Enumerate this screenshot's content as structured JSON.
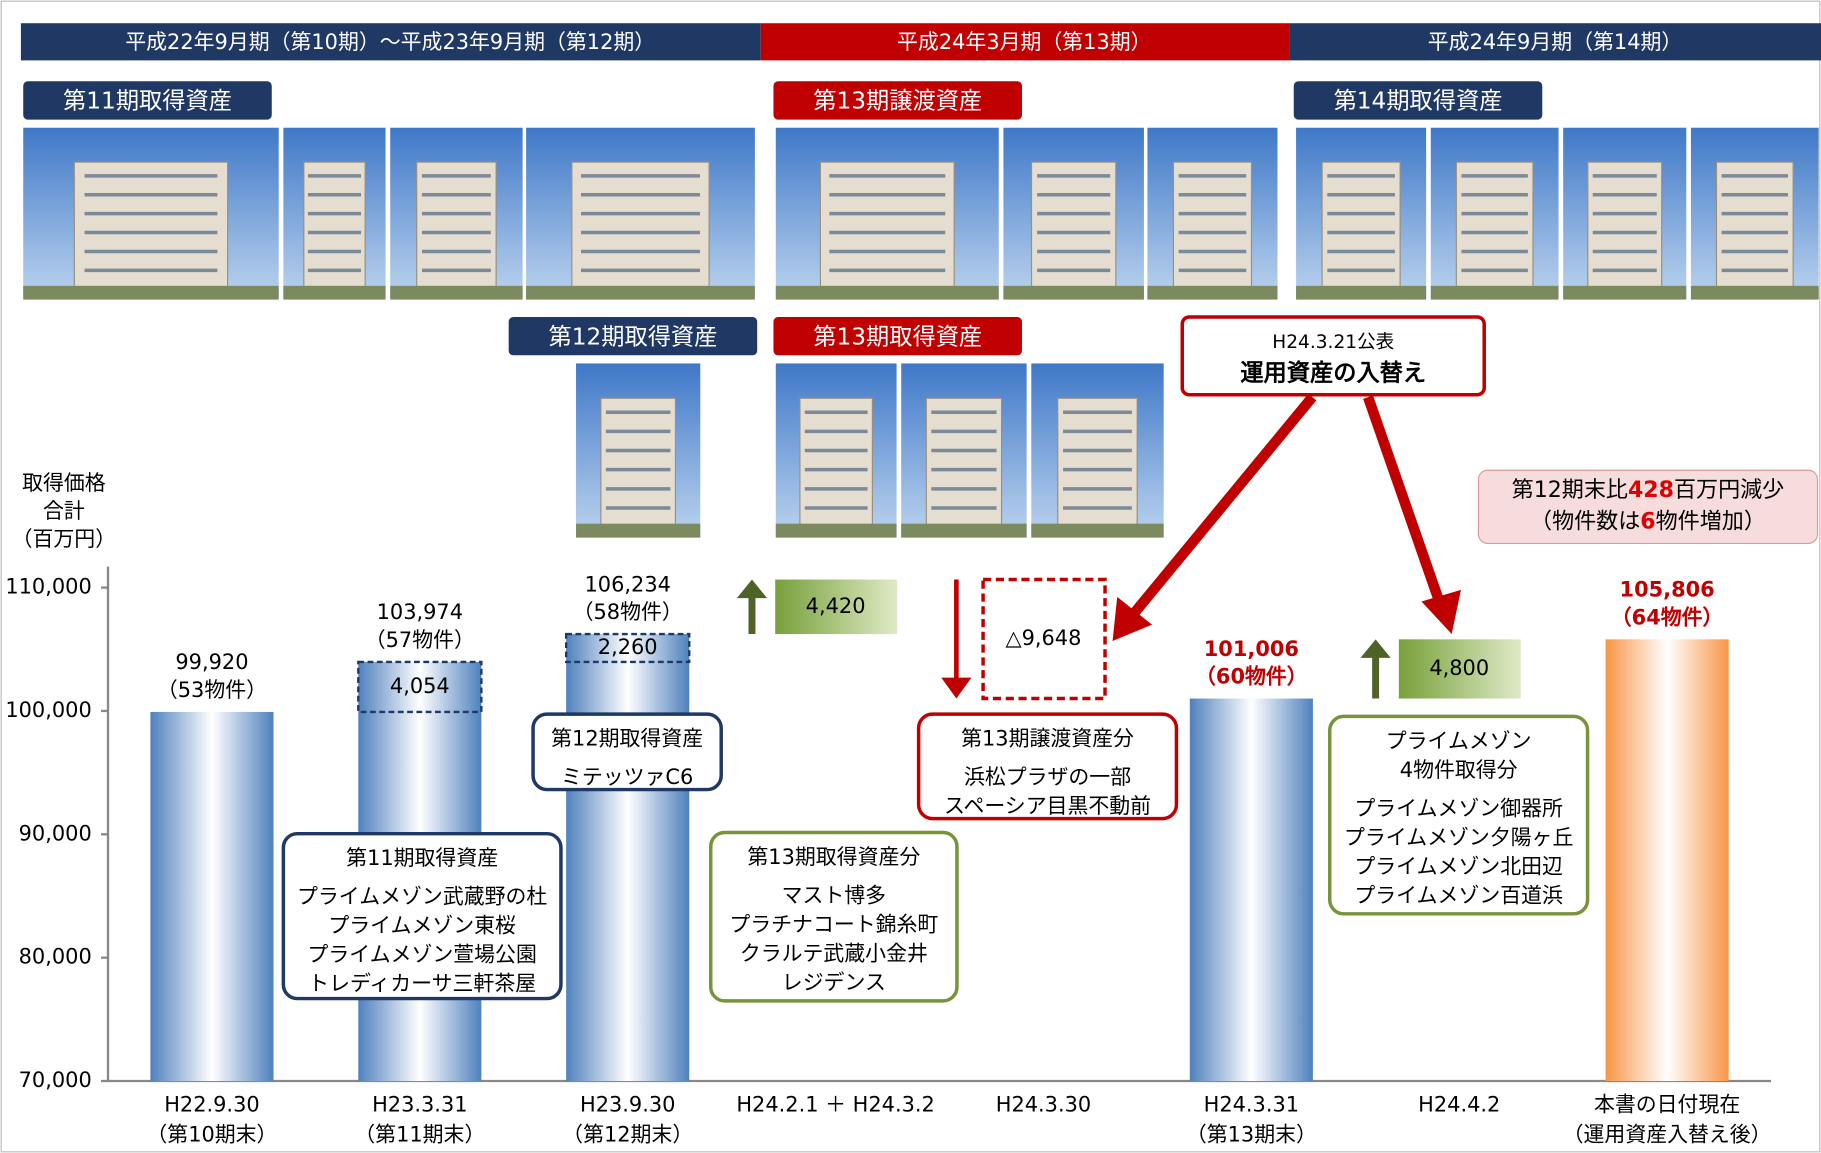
{
  "header": {
    "segments": [
      "平成22年9月期（第10期）～平成23年9月期（第12期）",
      "平成24年3月期（第13期）",
      "平成24年9月期（第14期）"
    ]
  },
  "photo_groups": [
    {
      "label": "第11期取得資産"
    },
    {
      "label": "第13期譲渡資産"
    },
    {
      "label": "第14期取得資産"
    },
    {
      "label": "第12期取得資産"
    },
    {
      "label": "第13期取得資産"
    }
  ],
  "announcement": {
    "date": "H24.3.21公表",
    "title": "運用資産の入替え"
  },
  "summary": {
    "line1": [
      "第12期末比",
      "428",
      "百万円減少"
    ],
    "line2": [
      "（物件数は",
      "6",
      "物件増加）"
    ]
  },
  "notes": [
    {
      "heading": [
        "第11期取得資産"
      ],
      "items": [
        "プライムメゾン武蔵野の杜",
        "プライムメゾン東桜",
        "プライムメゾン萱場公園",
        "トレディカーサ三軒茶屋"
      ]
    },
    {
      "heading": [
        "第12期取得資産"
      ],
      "items": [
        "ミテッツァC6"
      ]
    },
    {
      "heading": [
        "第13期取得資産分"
      ],
      "items": [
        "マスト博多",
        "プラチナコート錦糸町",
        "クラルテ武蔵小金井",
        "レジデンス"
      ]
    },
    {
      "heading": [
        "第13期譲渡資産分"
      ],
      "items": [
        "浜松プラザの一部",
        "スペーシア目黒不動前"
      ]
    },
    {
      "heading": [
        "プライムメゾン",
        "4物件取得分"
      ],
      "items": [
        "プライムメゾン御器所",
        "プライムメゾン夕陽ヶ丘",
        "プライムメゾン北田辺",
        "プライムメゾン百道浜"
      ]
    }
  ],
  "chart_data": {
    "type": "bar",
    "y_label": [
      "取得価格",
      "合計",
      "（百万円）"
    ],
    "categories": [
      "H22.9.30",
      "H23.3.31",
      "H23.9.30",
      "H24.2.1 ＋ H24.3.2",
      "H24.3.30",
      "H24.3.31",
      "H24.4.2",
      "本書の日付現在"
    ],
    "category_sublabels": [
      "（第10期末）",
      "（第11期末）",
      "（第12期末）",
      null,
      null,
      "（第13期末）",
      null,
      "（運用資産入替え後）"
    ],
    "values": [
      99920,
      103974,
      106234,
      null,
      null,
      101006,
      null,
      105806
    ],
    "value_labels": [
      "99,920",
      "103,974",
      "106,234",
      null,
      null,
      "101,006",
      null,
      "105,806"
    ],
    "count_labels": [
      "（53物件）",
      "（57物件）",
      "（58物件）",
      null,
      null,
      "（60物件）",
      null,
      "（64物件）"
    ],
    "colors": [
      "#4f81bd",
      "#4f81bd",
      "#4f81bd",
      null,
      null,
      "#4f81bd",
      null,
      "#f79646"
    ],
    "value_label_colors": [
      "#000000",
      "#000000",
      "#000000",
      null,
      null,
      "#c00000",
      null,
      "#c00000"
    ],
    "increments": [
      null,
      4054,
      2260,
      4420,
      -9648,
      null,
      4800,
      null
    ],
    "increment_labels": [
      null,
      "4,054",
      "2,260",
      "4,420",
      "△9,648",
      null,
      "4,800",
      null
    ],
    "increment_colors": [
      null,
      "#1f3864",
      "#1f3864",
      "#8fb04a",
      "#c00000",
      null,
      "#8fb04a",
      null
    ],
    "ylim": [
      70000,
      111700
    ],
    "yticks": [
      {
        "value": 70000,
        "label": "70,000"
      },
      {
        "value": 80000,
        "label": "80,000"
      },
      {
        "value": 90000,
        "label": "90,000"
      },
      {
        "value": 100000,
        "label": "100,000"
      },
      {
        "value": 110000,
        "label": "110,000"
      }
    ]
  }
}
